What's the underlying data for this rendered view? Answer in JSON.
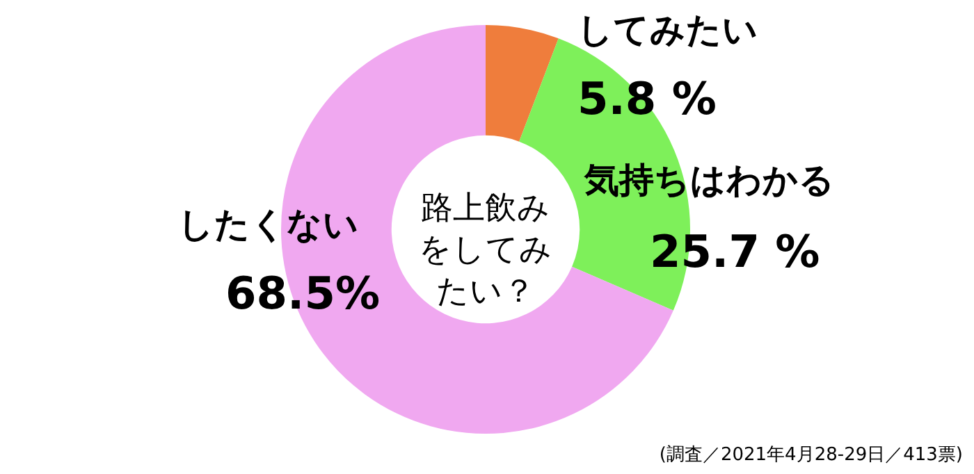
{
  "chart_data": {
    "type": "donut",
    "title": "路上飲みをしてみたい？",
    "categories": [
      "してみたい",
      "気持ちはわかる",
      "したくない"
    ],
    "values": [
      5.8,
      25.7,
      68.5
    ],
    "value_labels": [
      "5.8 %",
      "25.7 %",
      "68.5%"
    ],
    "colors": [
      "#ef7d3c",
      "#7ef05a",
      "#f0a8f0"
    ],
    "annotations": [
      "(調査／2021年4月28-29日／413票)"
    ]
  }
}
